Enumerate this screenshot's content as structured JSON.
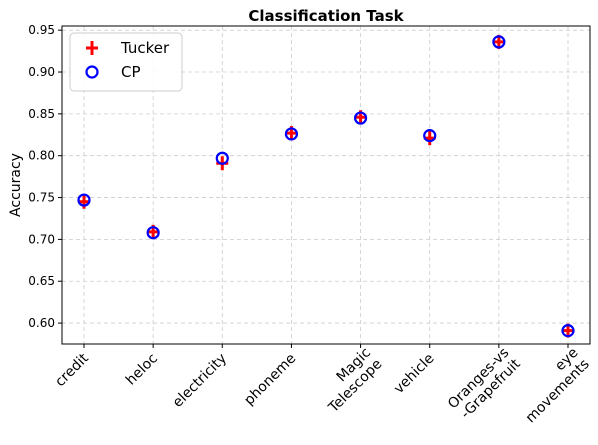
{
  "chart_data": {
    "type": "scatter",
    "title": "Classification Task",
    "xlabel": "",
    "ylabel": "Accuracy",
    "ylim": [
      0.575,
      0.955
    ],
    "yticks": [
      0.6,
      0.65,
      0.7,
      0.75,
      0.8,
      0.85,
      0.9,
      0.95
    ],
    "grid": true,
    "legend": "top-left",
    "categories": [
      [
        "credit"
      ],
      [
        "heloc"
      ],
      [
        "electricity"
      ],
      [
        "phoneme"
      ],
      [
        "Magic",
        "Telescope"
      ],
      [
        "vehicle"
      ],
      [
        "Oranges-vs",
        "-Grapefruit"
      ],
      [
        "eye",
        "movements"
      ]
    ],
    "series": [
      {
        "name": "Tucker",
        "marker": "plus",
        "color": "#ff0000",
        "values": [
          0.745,
          0.709,
          0.791,
          0.827,
          0.846,
          0.821,
          0.936,
          0.591
        ]
      },
      {
        "name": "CP",
        "marker": "circle",
        "color": "#0000ff",
        "values": [
          0.747,
          0.708,
          0.797,
          0.826,
          0.845,
          0.824,
          0.936,
          0.591
        ]
      }
    ]
  }
}
